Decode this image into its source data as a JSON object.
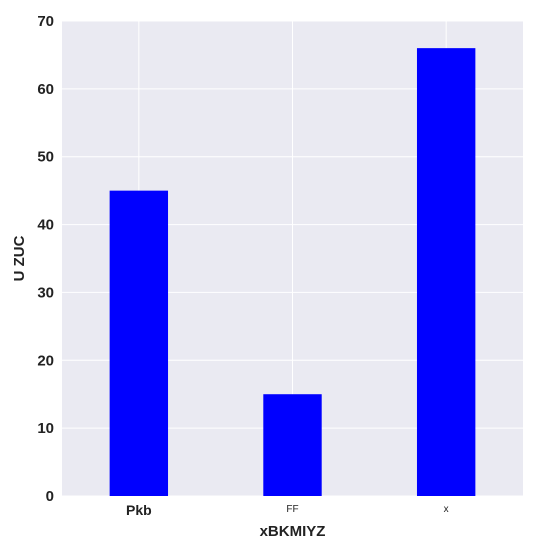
{
  "chart_data": {
    "type": "bar",
    "categories": [
      "Pkb",
      "FF",
      "x"
    ],
    "values": [
      45,
      15,
      66
    ],
    "title": "",
    "xlabel": "xBKMIYZ",
    "ylabel": "U ZUC",
    "ylim": [
      0,
      70
    ],
    "yticks": [
      0,
      10,
      20,
      30,
      40,
      50,
      60,
      70
    ],
    "grid": true,
    "legend": "none",
    "bar_color": "#0000ff",
    "plot_background": "#eaeaf2",
    "grid_color": "#ffffff"
  }
}
